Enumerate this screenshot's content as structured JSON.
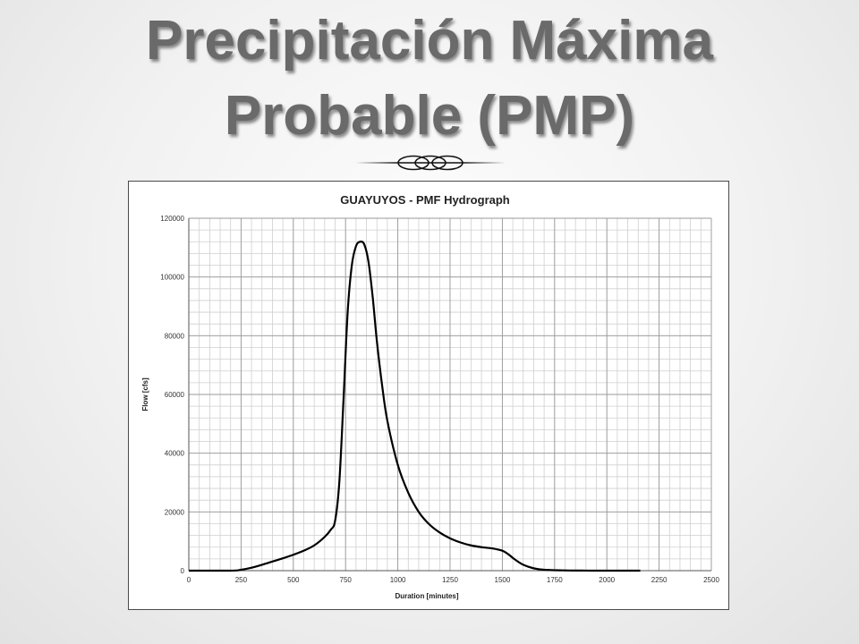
{
  "slide": {
    "title_line1": "Precipitación Máxima",
    "title_line2": "Probable (PMP)"
  },
  "chart_data": {
    "type": "line",
    "title": "GUAYUYOS - PMF Hydrograph",
    "xlabel": "Duration [minutes]",
    "ylabel": "Flow [cfs]",
    "xlim": [
      0,
      2500
    ],
    "ylim": [
      0,
      120000
    ],
    "x_ticks": [
      0,
      250,
      500,
      750,
      1000,
      1250,
      1500,
      1750,
      2000,
      2250,
      2500
    ],
    "y_ticks": [
      0,
      20000,
      40000,
      60000,
      80000,
      100000,
      120000
    ],
    "grid": true,
    "legend": "none",
    "line_color": "#000000",
    "series": [
      {
        "x": [
          0,
          200,
          250,
          300,
          350,
          400,
          450,
          500,
          550,
          600,
          650,
          680,
          700,
          720,
          740,
          760,
          780,
          800,
          820,
          840,
          860,
          880,
          900,
          925,
          950,
          1000,
          1050,
          1100,
          1150,
          1200,
          1250,
          1300,
          1350,
          1400,
          1450,
          1500,
          1530,
          1560,
          1600,
          1650,
          1700,
          1800,
          1900,
          2000,
          2160
        ],
        "values": [
          0,
          0,
          300,
          1000,
          2000,
          3100,
          4200,
          5400,
          6800,
          8600,
          11500,
          14000,
          17000,
          30000,
          58000,
          88000,
          104000,
          110500,
          112000,
          111000,
          105000,
          93000,
          78000,
          63000,
          51000,
          36000,
          26500,
          20000,
          15800,
          13000,
          11000,
          9600,
          8600,
          8000,
          7600,
          6800,
          5500,
          3800,
          2000,
          800,
          300,
          80,
          20,
          0,
          0
        ]
      }
    ]
  }
}
